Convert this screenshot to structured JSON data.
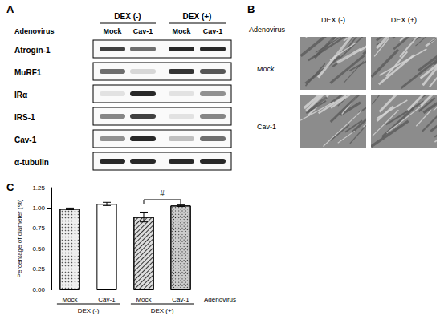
{
  "panels": {
    "A": {
      "label": "A",
      "row_header": "Adenovirus",
      "groups": [
        {
          "label": "DEX (-)",
          "lanes": [
            "Mock",
            "Cav-1"
          ]
        },
        {
          "label": "DEX (+)",
          "lanes": [
            "Mock",
            "Cav-1"
          ]
        }
      ],
      "rows": [
        {
          "label": "Atrogin-1",
          "bands": [
            0.8,
            0.6,
            0.9,
            0.9
          ]
        },
        {
          "label": "MuRF1",
          "bands": [
            0.6,
            0.15,
            0.85,
            0.7
          ]
        },
        {
          "label": "IRα",
          "bands": [
            0.1,
            0.9,
            0.1,
            0.45
          ]
        },
        {
          "label": "IRS-1",
          "bands": [
            0.5,
            0.8,
            0.1,
            0.5
          ]
        },
        {
          "label": "Cav-1",
          "bands": [
            0.45,
            0.9,
            0.25,
            0.6
          ]
        },
        {
          "label": "α-tubulin",
          "bands": [
            0.9,
            0.9,
            0.9,
            0.9
          ]
        }
      ]
    },
    "B": {
      "label": "B",
      "row_header": "Adenovirus",
      "columns": [
        "DEX (-)",
        "DEX (+)"
      ],
      "rows": [
        "Mock",
        "Cav-1"
      ]
    },
    "C": {
      "label": "C"
    }
  },
  "chart_data": {
    "type": "bar",
    "ylabel": "Percentage of diameter (%)",
    "xlabel": "Adenovirus",
    "categories": [
      "Mock",
      "Cav-1",
      "Mock",
      "Cav-1"
    ],
    "values": [
      0.99,
      1.05,
      0.89,
      1.03
    ],
    "errors": [
      0.01,
      0.02,
      0.06,
      0.01
    ],
    "colors": [
      "#eeeeee",
      "#ffffff",
      "#dddddd",
      "#cccccc"
    ],
    "groups": [
      {
        "label": "DEX (-)",
        "categories": [
          0,
          1
        ]
      },
      {
        "label": "DEX (+)",
        "categories": [
          2,
          3
        ]
      }
    ],
    "annotations": [
      {
        "text": "#",
        "between": [
          2,
          3
        ]
      }
    ],
    "ylim": [
      0,
      1.25
    ],
    "yticks": [
      {
        "value": 0,
        "label": "0.00"
      },
      {
        "value": 0.25,
        "label": "0.25"
      },
      {
        "value": 0.5,
        "label": "0.50"
      },
      {
        "value": 0.75,
        "label": "0.75"
      },
      {
        "value": 1,
        "label": "1.00"
      },
      {
        "value": 1.25,
        "label": "1.25"
      }
    ],
    "grid": false
  }
}
